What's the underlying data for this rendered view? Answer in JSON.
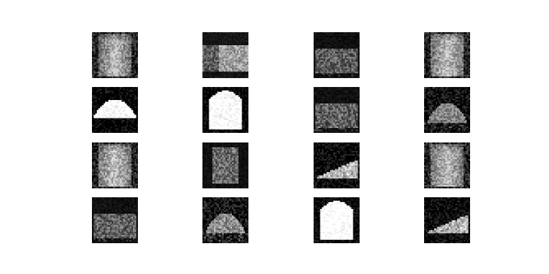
{
  "grid": {
    "rows": 4,
    "columns": 4,
    "tiles": [
      {
        "shape": "arch-soft",
        "brightness": 0.55
      },
      {
        "shape": "blob-right-noisy",
        "brightness": 0.6
      },
      {
        "shape": "noise-wide",
        "brightness": 0.45
      },
      {
        "shape": "arch-soft",
        "brightness": 0.6
      },
      {
        "shape": "mound-bright",
        "brightness": 1.0
      },
      {
        "shape": "arch-bright",
        "brightness": 0.95
      },
      {
        "shape": "noise-wide",
        "brightness": 0.5
      },
      {
        "shape": "mound-soft",
        "brightness": 0.6
      },
      {
        "shape": "arch-soft",
        "brightness": 0.62
      },
      {
        "shape": "noise-column",
        "brightness": 0.5
      },
      {
        "shape": "wedge-noisy",
        "brightness": 0.75
      },
      {
        "shape": "arch-soft",
        "brightness": 0.58
      },
      {
        "shape": "noise-wide",
        "brightness": 0.5
      },
      {
        "shape": "mound-soft",
        "brightness": 0.75
      },
      {
        "shape": "arch-bright",
        "brightness": 1.0
      },
      {
        "shape": "wedge-noisy",
        "brightness": 0.7
      }
    ]
  }
}
